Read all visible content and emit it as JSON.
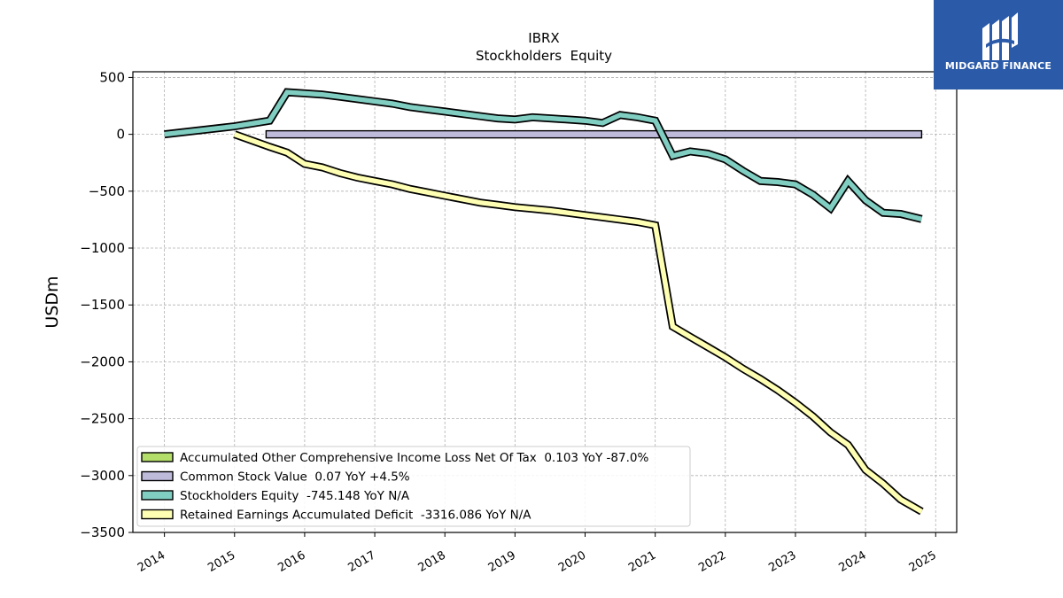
{
  "chart_data": {
    "type": "line",
    "title": "IBRX",
    "subtitle": "Stockholders  Equity",
    "ylabel": "USDm",
    "xlabel": "",
    "xlim": [
      2013.55,
      2025.3
    ],
    "ylim": [
      -3500,
      550
    ],
    "yticks": [
      500,
      0,
      -500,
      -1000,
      -1500,
      -2000,
      -2500,
      -3000,
      -3500
    ],
    "xticks": [
      2014,
      2015,
      2016,
      2017,
      2018,
      2019,
      2020,
      2021,
      2022,
      2023,
      2024,
      2025
    ],
    "ytick_labels": [
      "500",
      "0",
      "−500",
      "−1000",
      "−1500",
      "−2000",
      "−2500",
      "−3000",
      "−3500"
    ],
    "xtick_labels": [
      "2014",
      "2015",
      "2016",
      "2017",
      "2018",
      "2019",
      "2020",
      "2021",
      "2022",
      "2023",
      "2024",
      "2025"
    ],
    "grid": true,
    "legend_position": "lower-left",
    "series": [
      {
        "name": "Accumulated Other Comprehensive Income Loss Net Of Tax",
        "legend_label": "Accumulated Other Comprehensive Income Loss Net Of Tax  0.103 YoY -87.0%",
        "color": "#b3de69",
        "points": []
      },
      {
        "name": "Common Stock Value",
        "legend_label": "Common Stock Value  0.07 YoY +4.5%",
        "color": "#bebada",
        "points": [
          [
            2015.45,
            0.07
          ],
          [
            2024.8,
            0.07
          ]
        ]
      },
      {
        "name": "Stockholders Equity",
        "legend_label": "Stockholders Equity  -745.148 YoY N/A",
        "color": "#80cdc1",
        "points": [
          [
            2014.0,
            0
          ],
          [
            2015.0,
            70
          ],
          [
            2015.5,
            120
          ],
          [
            2015.75,
            370
          ],
          [
            2016.0,
            360
          ],
          [
            2016.25,
            350
          ],
          [
            2016.5,
            330
          ],
          [
            2016.75,
            310
          ],
          [
            2017.0,
            290
          ],
          [
            2017.25,
            270
          ],
          [
            2017.5,
            240
          ],
          [
            2017.75,
            220
          ],
          [
            2018.0,
            200
          ],
          [
            2018.25,
            180
          ],
          [
            2018.5,
            160
          ],
          [
            2018.75,
            140
          ],
          [
            2019.0,
            130
          ],
          [
            2019.25,
            150
          ],
          [
            2019.5,
            140
          ],
          [
            2019.75,
            130
          ],
          [
            2020.0,
            120
          ],
          [
            2020.25,
            100
          ],
          [
            2020.5,
            170
          ],
          [
            2020.75,
            150
          ],
          [
            2021.0,
            120
          ],
          [
            2021.25,
            -190
          ],
          [
            2021.5,
            -150
          ],
          [
            2021.75,
            -170
          ],
          [
            2022.0,
            -220
          ],
          [
            2022.25,
            -320
          ],
          [
            2022.5,
            -410
          ],
          [
            2022.75,
            -420
          ],
          [
            2023.0,
            -440
          ],
          [
            2023.25,
            -530
          ],
          [
            2023.5,
            -650
          ],
          [
            2023.75,
            -410
          ],
          [
            2024.0,
            -580
          ],
          [
            2024.25,
            -690
          ],
          [
            2024.5,
            -700
          ],
          [
            2024.8,
            -745.148
          ]
        ]
      },
      {
        "name": "Retained Earnings Accumulated Deficit",
        "legend_label": "Retained Earnings Accumulated Deficit  -3316.086 YoY N/A",
        "color": "#ffffb3",
        "points": [
          [
            2015.0,
            0
          ],
          [
            2015.5,
            -110
          ],
          [
            2015.75,
            -160
          ],
          [
            2016.0,
            -260
          ],
          [
            2016.25,
            -290
          ],
          [
            2016.5,
            -340
          ],
          [
            2016.75,
            -380
          ],
          [
            2017.0,
            -410
          ],
          [
            2017.25,
            -440
          ],
          [
            2017.5,
            -480
          ],
          [
            2017.75,
            -510
          ],
          [
            2018.0,
            -540
          ],
          [
            2018.25,
            -570
          ],
          [
            2018.5,
            -600
          ],
          [
            2018.75,
            -620
          ],
          [
            2019.0,
            -640
          ],
          [
            2019.25,
            -655
          ],
          [
            2019.5,
            -670
          ],
          [
            2019.75,
            -690
          ],
          [
            2020.0,
            -710
          ],
          [
            2020.25,
            -730
          ],
          [
            2020.5,
            -750
          ],
          [
            2020.75,
            -770
          ],
          [
            2021.0,
            -800
          ],
          [
            2021.25,
            -1690
          ],
          [
            2021.5,
            -1780
          ],
          [
            2021.75,
            -1870
          ],
          [
            2022.0,
            -1960
          ],
          [
            2022.25,
            -2060
          ],
          [
            2022.5,
            -2150
          ],
          [
            2022.75,
            -2250
          ],
          [
            2023.0,
            -2360
          ],
          [
            2023.25,
            -2480
          ],
          [
            2023.5,
            -2620
          ],
          [
            2023.75,
            -2730
          ],
          [
            2024.0,
            -2950
          ],
          [
            2024.25,
            -3070
          ],
          [
            2024.5,
            -3210
          ],
          [
            2024.8,
            -3316.086
          ]
        ]
      }
    ]
  },
  "logo": {
    "text": "MIDGARD FINANCE",
    "background": "#2b5aa8",
    "text_color": "#ffffff",
    "icon": "midgard-finance-logo-icon"
  }
}
